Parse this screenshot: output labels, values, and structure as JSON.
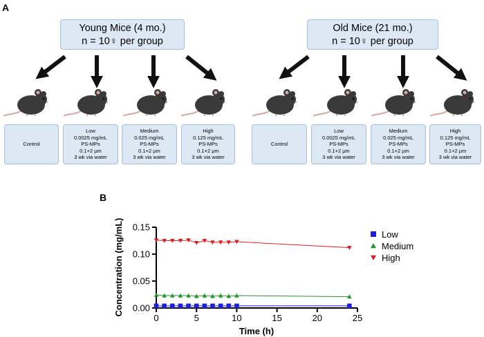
{
  "panel_a": {
    "letter": "A",
    "groups": [
      {
        "title_line1": "Young Mice (4 mo.)",
        "title_line2": "n = 10♀ per group",
        "treatments": [
          {
            "lines": [
              "Control"
            ]
          },
          {
            "lines": [
              "Low",
              "0.0025 mg/mL",
              "PS-MPs",
              "0.1+2 µm",
              "3 wk via water"
            ]
          },
          {
            "lines": [
              "Medium",
              "0.025 mg/mL",
              "PS-MPs",
              "0.1+2 µm",
              "3 wk via water"
            ]
          },
          {
            "lines": [
              "High",
              "0.125 mg/mL",
              "PS-MPs",
              "0.1+2 µm",
              "3 wk via water"
            ]
          }
        ]
      },
      {
        "title_line1": "Old Mice (21 mo.)",
        "title_line2": "n = 10♀ per group",
        "treatments": [
          {
            "lines": [
              "Control"
            ]
          },
          {
            "lines": [
              "Low",
              "0.0025 mg/mL",
              "PS-MPs",
              "0.1+2 µm",
              "3 wk via water"
            ]
          },
          {
            "lines": [
              "Medium",
              "0.025 mg/mL",
              "PS-MPs",
              "0.1+2 µm",
              "3 wk via water"
            ]
          },
          {
            "lines": [
              "High",
              "0.125 mg/mL",
              "PS-MPs",
              "0.1+2 µm",
              "3 wk via water"
            ]
          }
        ]
      }
    ],
    "colors": {
      "box_fill": "#dde8f5",
      "box_border": "#a7bddc",
      "mouse_body": "#3a3a3a",
      "mouse_tail": "#d8a8a0"
    }
  },
  "panel_b": {
    "letter": "B"
  },
  "chart_data": {
    "type": "scatter",
    "xlabel": "Time (h)",
    "ylabel": "Concentration (mg/mL)",
    "xlim": [
      0,
      25
    ],
    "ylim": [
      0,
      0.15
    ],
    "xticks": [
      "0",
      "5",
      "10",
      "15",
      "20",
      "25"
    ],
    "yticks": [
      "0.00",
      "0.05",
      "0.10",
      "0.15"
    ],
    "grid": false,
    "legend_position": "right",
    "series": [
      {
        "name": "Low",
        "color": "#1f1fd6",
        "marker": "square",
        "x": [
          0,
          1,
          2,
          3,
          4,
          5,
          6,
          7,
          8,
          9,
          10,
          24
        ],
        "y": [
          0.004,
          0.004,
          0.004,
          0.004,
          0.004,
          0.004,
          0.004,
          0.004,
          0.004,
          0.004,
          0.004,
          0.004
        ]
      },
      {
        "name": "Medium",
        "color": "#1f9a2a",
        "marker": "triangle-up",
        "x": [
          0,
          1,
          2,
          3,
          4,
          5,
          6,
          7,
          8,
          9,
          10,
          24
        ],
        "y": [
          0.024,
          0.023,
          0.023,
          0.023,
          0.023,
          0.022,
          0.023,
          0.022,
          0.023,
          0.022,
          0.023,
          0.021
        ]
      },
      {
        "name": "High",
        "color": "#e02020",
        "marker": "triangle-down",
        "x": [
          0,
          1,
          2,
          3,
          4,
          5,
          6,
          7,
          8,
          9,
          10,
          24
        ],
        "y": [
          0.126,
          0.125,
          0.125,
          0.125,
          0.126,
          0.121,
          0.125,
          0.122,
          0.122,
          0.122,
          0.123,
          0.112
        ]
      }
    ]
  }
}
